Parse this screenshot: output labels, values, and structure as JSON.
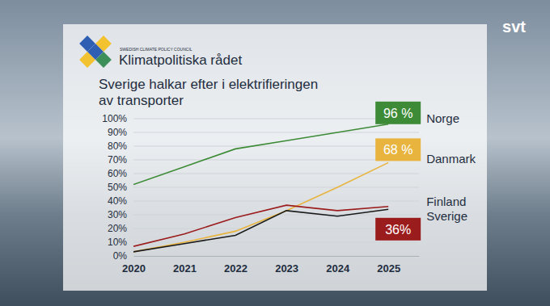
{
  "chart_data": {
    "type": "line",
    "title": [
      "Sverige halkar efter i elektrifieringen",
      "av transporter"
    ],
    "logo_text": "Klimatpolitiska rådet",
    "logo_subtitle": "SWEDISH CLIMATE POLICY COUNCIL",
    "watermark": "svt",
    "x": [
      2020,
      2021,
      2022,
      2023,
      2024,
      2025
    ],
    "xlim": [
      2020,
      2025.6
    ],
    "xticks": [
      2020,
      2021,
      2022,
      2023,
      2024,
      2025
    ],
    "ylim": [
      0,
      100
    ],
    "yticks": [
      {
        "value": 0,
        "label": "0%"
      },
      {
        "value": 10,
        "label": "10%"
      },
      {
        "value": 20,
        "label": "20%"
      },
      {
        "value": 30,
        "label": "30%"
      },
      {
        "value": 40,
        "label": "40%"
      },
      {
        "value": 50,
        "label": "50%"
      },
      {
        "value": 60,
        "label": "60%"
      },
      {
        "value": 70,
        "label": "70%"
      },
      {
        "value": 80,
        "label": "80%"
      },
      {
        "value": 90,
        "label": "90%"
      },
      {
        "value": 100,
        "label": "100%"
      }
    ],
    "grid": true,
    "data_labels": true,
    "series": [
      {
        "name": "Norge",
        "color": "#3d8b37",
        "values": [
          52,
          65,
          78,
          84,
          90,
          96
        ],
        "value_labels": [
          null,
          null,
          null,
          null,
          null,
          "96 %"
        ]
      },
      {
        "name": "Danmark",
        "color": "#e8b43e",
        "values": [
          3,
          10,
          18,
          33,
          50,
          68
        ],
        "value_labels": [
          null,
          null,
          null,
          null,
          null,
          "68 %"
        ]
      },
      {
        "name": "Finland",
        "color": "#1a1a1a",
        "values": [
          3,
          9,
          15,
          33,
          29,
          34
        ]
      },
      {
        "name": "Sverige",
        "color": "#9b1c1c",
        "values": [
          7,
          16,
          28,
          37,
          33,
          36
        ],
        "value_labels": [
          null,
          null,
          null,
          null,
          null,
          "36%"
        ]
      }
    ]
  }
}
